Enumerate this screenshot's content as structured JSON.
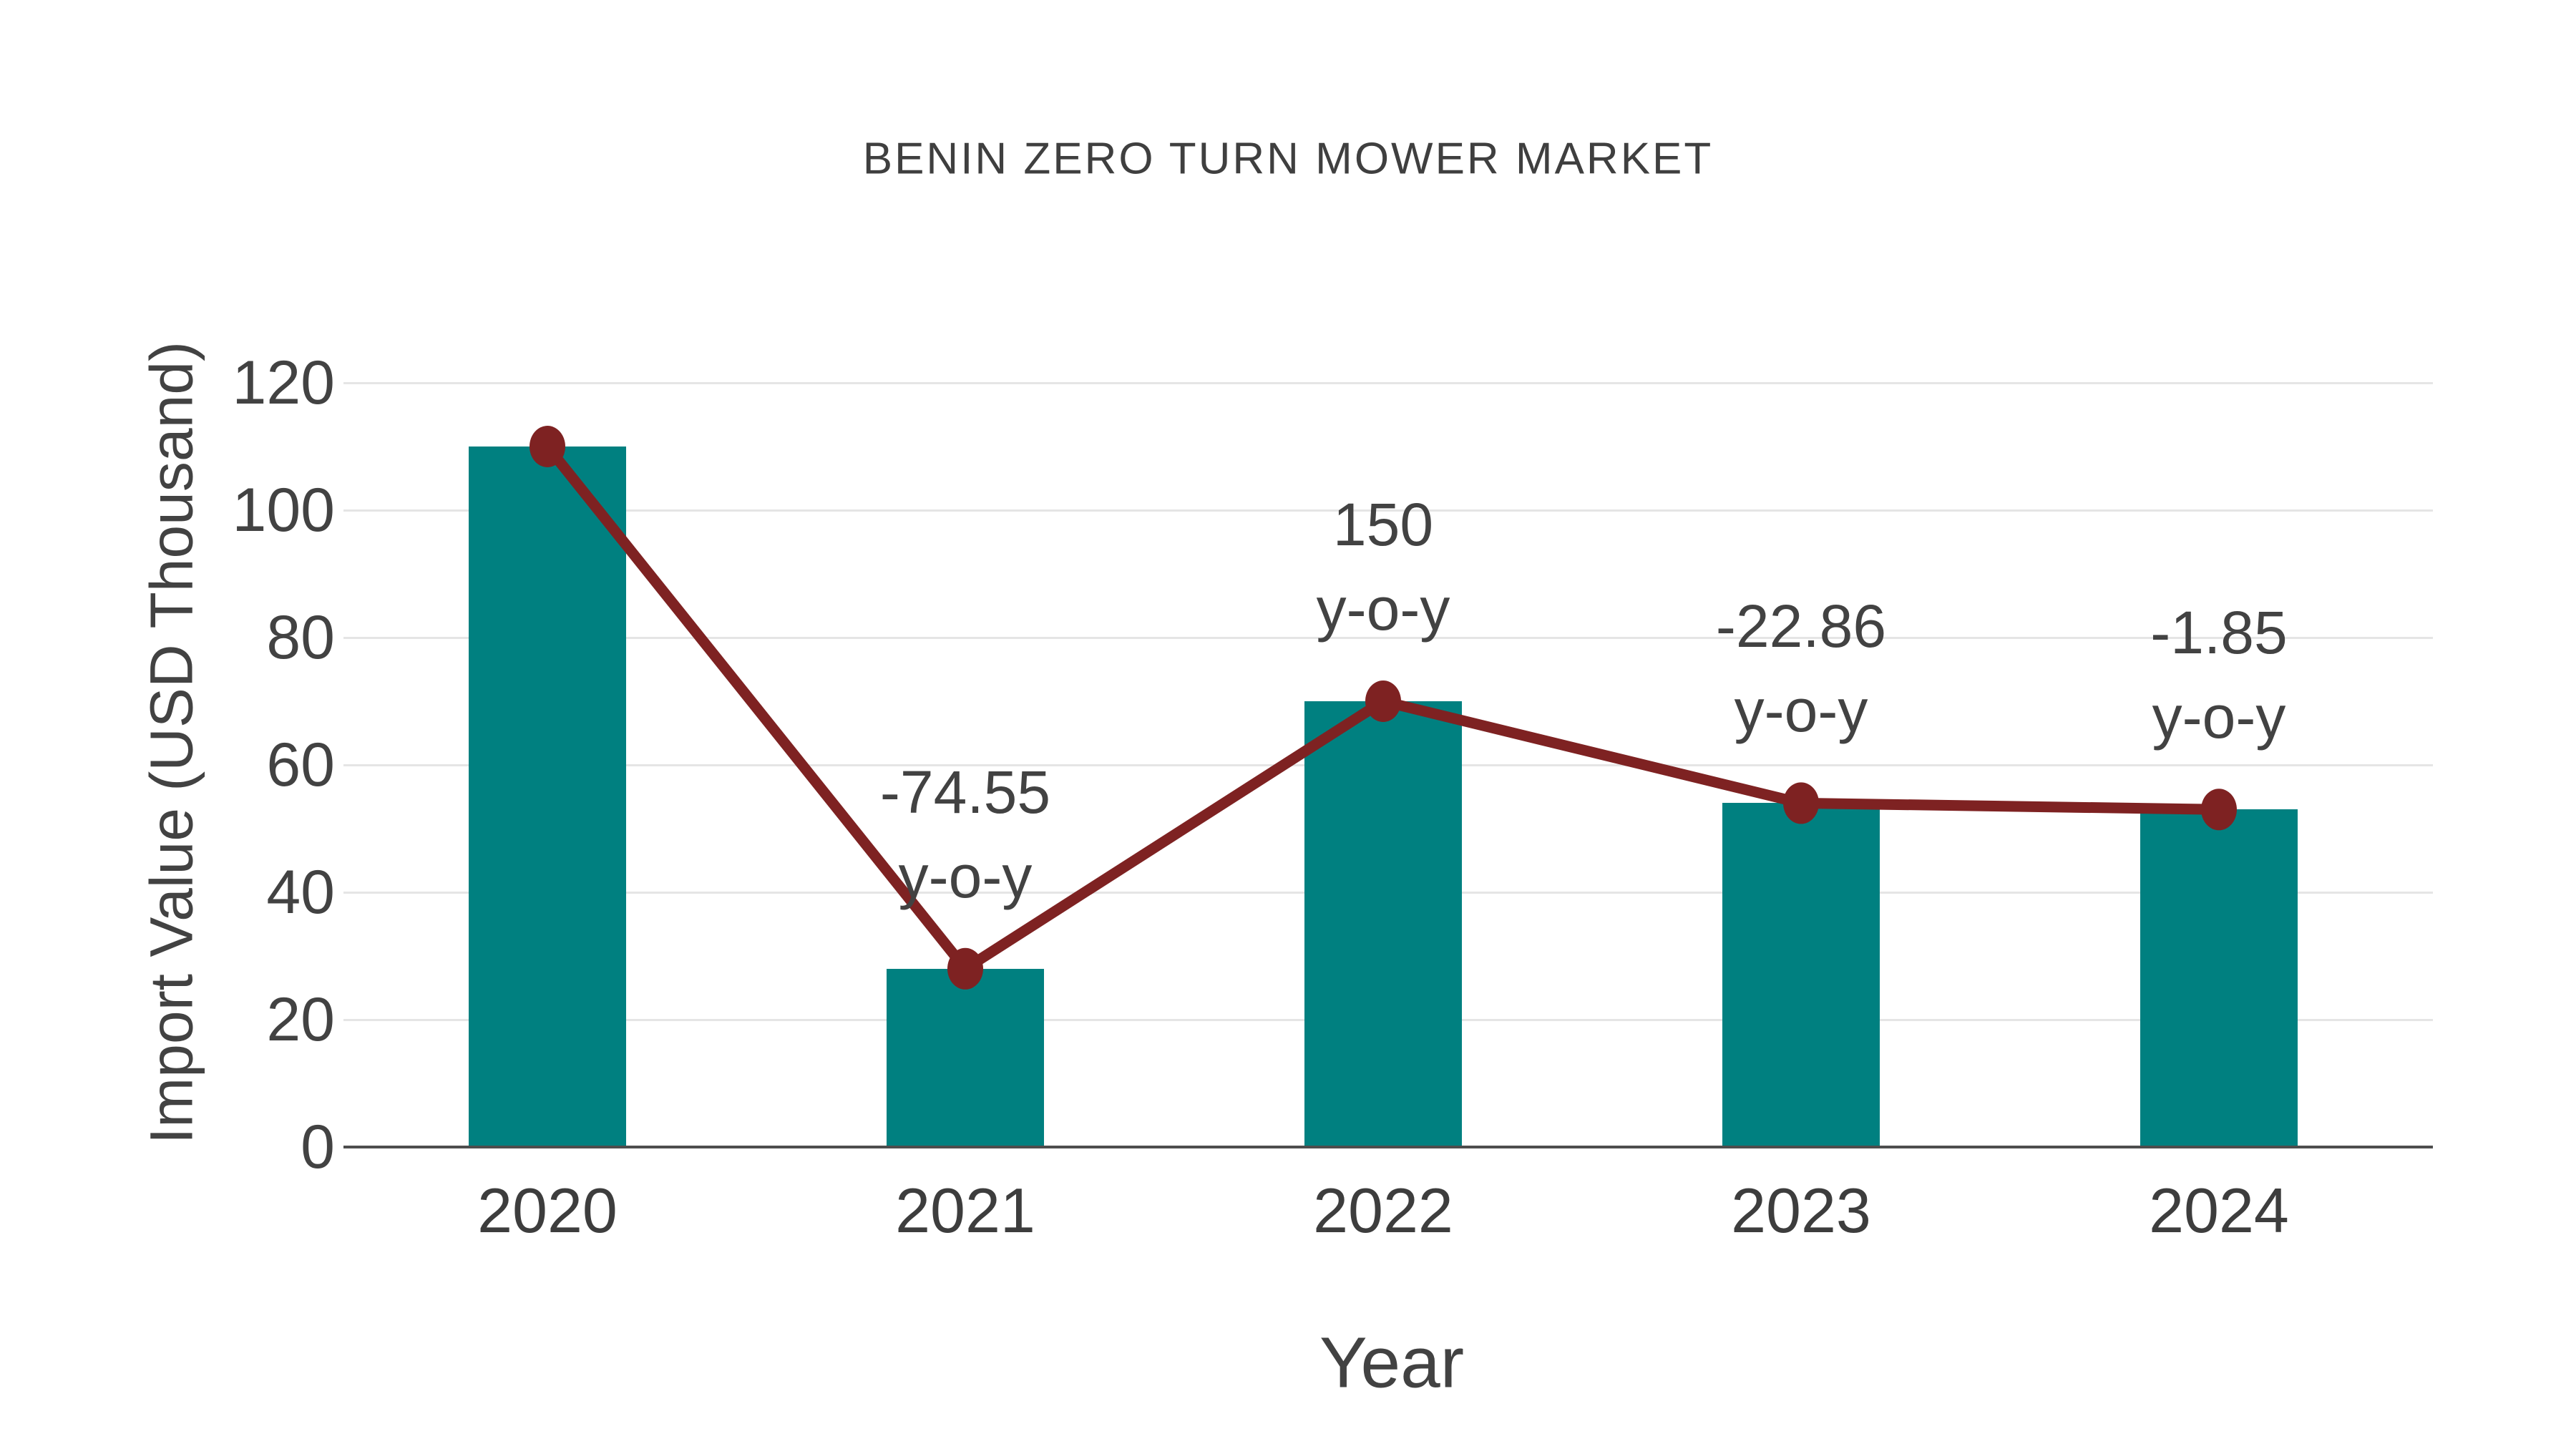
{
  "chart_data": {
    "type": "combo",
    "title": "BENIN ZERO TURN MOWER MARKET",
    "xlabel": "Year",
    "ylabel": "Import Value (USD Thousand)",
    "categories": [
      "2020",
      "2021",
      "2022",
      "2023",
      "2024"
    ],
    "series": [
      {
        "name": "import-value-bars",
        "type": "bar",
        "values": [
          110,
          28,
          70,
          54,
          53
        ],
        "color": "#008080"
      },
      {
        "name": "import-value-trend-line",
        "type": "line",
        "values": [
          110,
          28,
          70,
          54,
          53
        ],
        "color": "#7e2222"
      }
    ],
    "annotations": [
      {
        "category": "2021",
        "line1": "-74.55",
        "line2": "y-o-y"
      },
      {
        "category": "2022",
        "line1": "150",
        "line2": "y-o-y"
      },
      {
        "category": "2023",
        "line1": "-22.86",
        "line2": "y-o-y"
      },
      {
        "category": "2024",
        "line1": "-1.85",
        "line2": "y-o-y"
      }
    ],
    "ylim": [
      0,
      120
    ],
    "yticks": [
      0,
      20,
      40,
      60,
      80,
      100,
      120
    ],
    "grid": true,
    "legend_position": "none"
  },
  "colors": {
    "bar": "#008080",
    "line": "#7e2222",
    "marker": "#7e2222",
    "text": "#424242",
    "title_text": "#3f3f3f",
    "gridline": "#e5e5e5",
    "axisline": "#4d4d4d",
    "background": "#ffffff"
  }
}
